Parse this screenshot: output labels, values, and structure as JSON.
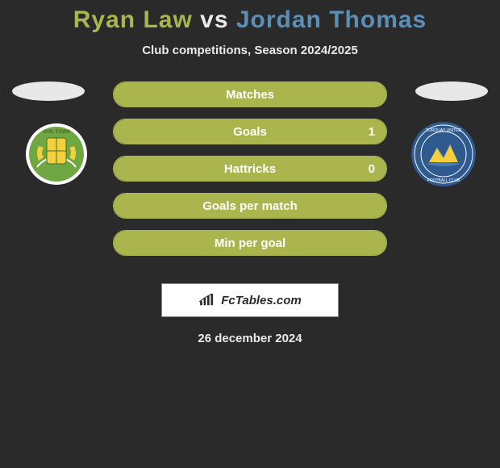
{
  "title": {
    "player1": "Ryan Law",
    "vs": "vs",
    "player2": "Jordan Thomas"
  },
  "subtitle": "Club competitions, Season 2024/2025",
  "colors": {
    "player1": "#aab54d",
    "player2": "#5a8fb8",
    "background": "#2a2a2a",
    "text": "#e8eaed"
  },
  "stats": [
    {
      "label": "Matches",
      "left_value": "",
      "right_value": "",
      "left_fill_pct": 100,
      "right_fill_pct": 0
    },
    {
      "label": "Goals",
      "left_value": "",
      "right_value": "1",
      "left_fill_pct": 100,
      "right_fill_pct": 0
    },
    {
      "label": "Hattricks",
      "left_value": "",
      "right_value": "0",
      "left_fill_pct": 100,
      "right_fill_pct": 0
    },
    {
      "label": "Goals per match",
      "left_value": "",
      "right_value": "",
      "left_fill_pct": 100,
      "right_fill_pct": 0
    },
    {
      "label": "Min per goal",
      "left_value": "",
      "right_value": "",
      "left_fill_pct": 100,
      "right_fill_pct": 0
    }
  ],
  "logo_text": "FcTables.com",
  "date": "26 december 2024",
  "badges": {
    "left": {
      "name": "yeovil-town-badge",
      "primary": "#6fa843",
      "secondary": "#f4d03f",
      "border": "#ffffff"
    },
    "right": {
      "name": "torquay-united-badge",
      "primary": "#2e5a8f",
      "secondary": "#f4d03f",
      "border": "#ffffff"
    }
  }
}
